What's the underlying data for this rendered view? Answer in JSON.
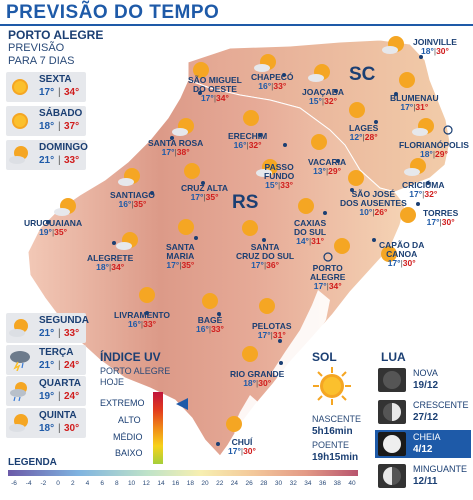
{
  "header": {
    "title": "PREVISÃO DO TEMPO"
  },
  "location": {
    "name": "PORTO ALEGRE",
    "subtitle_line1": "PREVISÃO",
    "subtitle_line2": "PARA 7 DIAS"
  },
  "days": [
    {
      "name": "SEXTA",
      "min": "17°",
      "max": "34°",
      "icon": "sun-icon"
    },
    {
      "name": "SÁBADO",
      "min": "18°",
      "max": "37°",
      "icon": "sun-icon"
    },
    {
      "name": "DOMINGO",
      "min": "21°",
      "max": "33°",
      "icon": "sun-cloud-icon"
    },
    {
      "name": "SEGUNDA",
      "min": "21°",
      "max": "33°",
      "icon": "sun-cloud-icon"
    },
    {
      "name": "TERÇA",
      "min": "21°",
      "max": "24°",
      "icon": "storm-icon"
    },
    {
      "name": "QUARTA",
      "min": "19°",
      "max": "24°",
      "icon": "sun-rain-icon"
    },
    {
      "name": "QUINTA",
      "min": "18°",
      "max": "30°",
      "icon": "sun-cloud-icon"
    }
  ],
  "map": {
    "states": {
      "rs": "RS",
      "sc": "SC"
    },
    "cities": [
      {
        "name": "SÃO MIGUEL\nDO OESTE",
        "line1": "SÃO MIGUEL",
        "line2": "DO OESTE",
        "min": "17°",
        "max": "34°"
      },
      {
        "line1": "CHAPECÓ",
        "min": "16°",
        "max": "33°"
      },
      {
        "line1": "JOAÇABA",
        "min": "15°",
        "max": "32°"
      },
      {
        "line1": "JOINVILLE",
        "min": "18°",
        "max": "30°"
      },
      {
        "line1": "BLUMENAU",
        "min": "17°",
        "max": "31°"
      },
      {
        "line1": "LAGES",
        "min": "12°",
        "max": "28°"
      },
      {
        "line1": "FLORIANÓPOLIS",
        "min": "18°",
        "max": "29°"
      },
      {
        "line1": "SANTA ROSA",
        "min": "17°",
        "max": "38°"
      },
      {
        "line1": "ERECHIM",
        "min": "16°",
        "max": "32°"
      },
      {
        "line1": "PASSO",
        "line2": "FUNDO",
        "min": "15°",
        "max": "33°"
      },
      {
        "line1": "VACARIA",
        "min": "13°",
        "max": "29°"
      },
      {
        "line1": "SÃO JOSÉ",
        "line2": "DOS AUSENTES",
        "min": "10°",
        "max": "26°"
      },
      {
        "line1": "CRICIÚMA",
        "min": "17°",
        "max": "32°"
      },
      {
        "line1": "SANTIAGO",
        "min": "16°",
        "max": "35°"
      },
      {
        "line1": "CRUZ ALTA",
        "min": "17°",
        "max": "35°"
      },
      {
        "line1": "CAXIAS",
        "line2": "DO SUL",
        "min": "14°",
        "max": "31°"
      },
      {
        "line1": "TORRES",
        "min": "17°",
        "max": "30°"
      },
      {
        "line1": "URUGUAIANA",
        "min": "19°",
        "max": "35°"
      },
      {
        "line1": "ALEGRETE",
        "min": "18°",
        "max": "34°"
      },
      {
        "line1": "SANTA",
        "line2": "MARIA",
        "min": "17°",
        "max": "35°"
      },
      {
        "line1": "SANTA",
        "line2": "CRUZ DO SUL",
        "min": "17°",
        "max": "36°"
      },
      {
        "line1": "PORTO",
        "line2": "ALEGRE",
        "min": "17°",
        "max": "34°"
      },
      {
        "line1": "CAPÃO DA",
        "line2": "CANOA",
        "min": "17°",
        "max": "30°"
      },
      {
        "line1": "LIVRAMENTO",
        "min": "16°",
        "max": "33°"
      },
      {
        "line1": "BAGÉ",
        "min": "16°",
        "max": "33°"
      },
      {
        "line1": "PELOTAS",
        "min": "17°",
        "max": "31°"
      },
      {
        "line1": "RIO GRANDE",
        "min": "18°",
        "max": "30°"
      },
      {
        "line1": "CHUÍ",
        "min": "17°",
        "max": "30°"
      }
    ]
  },
  "uv": {
    "title": "ÍNDICE UV",
    "subtitle_line1": "PORTO ALEGRE",
    "subtitle_line2": "HOJE",
    "levels": [
      "EXTREMO",
      "ALTO",
      "MÉDIO",
      "BAIXO"
    ],
    "current_level": "EXTREMO"
  },
  "sol": {
    "title": "SOL",
    "sunrise_label": "NASCENTE",
    "sunrise": "5h16min",
    "sunset_label": "POENTE",
    "sunset": "19h15min"
  },
  "lua": {
    "title": "LUA",
    "phases": [
      {
        "name": "NOVA",
        "date": "19/12",
        "active": false
      },
      {
        "name": "CRESCENTE",
        "date": "27/12",
        "active": false
      },
      {
        "name": "CHEIA",
        "date": "4/12",
        "active": true
      },
      {
        "name": "MINGUANTE",
        "date": "12/11",
        "active": false
      }
    ]
  },
  "legend": {
    "title": "LEGENDA",
    "ticks": [
      "-6",
      "-4",
      "-2",
      "0",
      "2",
      "4",
      "6",
      "8",
      "10",
      "12",
      "14",
      "16",
      "18",
      "20",
      "22",
      "24",
      "26",
      "28",
      "30",
      "32",
      "34",
      "36",
      "38",
      "40"
    ]
  },
  "colors": {
    "accent": "#1e5aa8",
    "max_temp": "#d01c1c",
    "min_temp": "#1e5aa8",
    "map_warm": "#e8b7a3",
    "map_hot": "#d48a79"
  }
}
